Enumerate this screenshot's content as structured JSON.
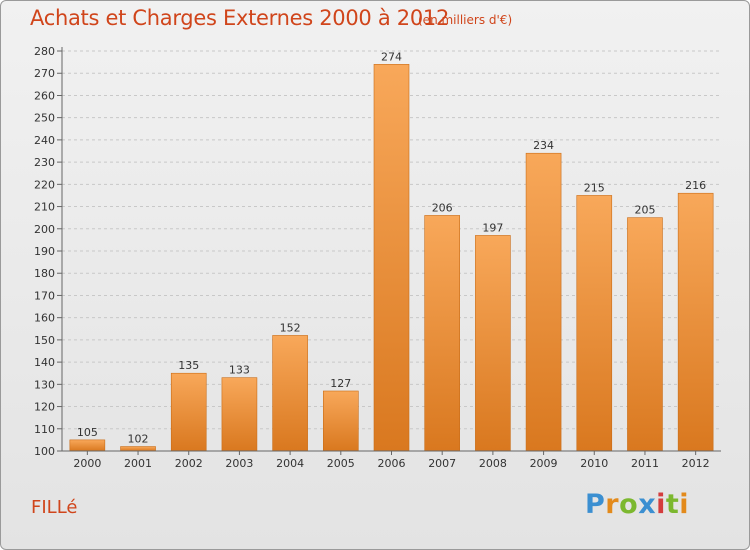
{
  "header": {
    "title": "Achats et Charges Externes 2000 à 2012",
    "subtitle": "(en milliers d'€)"
  },
  "footer": {
    "commune": "FILLé",
    "logo_text": "Proxiti",
    "logo_colors": [
      "#3b8fd1",
      "#e38a1b",
      "#7cb82f",
      "#3b8fd1",
      "#d43d3d",
      "#7cb82f",
      "#e38a1b"
    ]
  },
  "colors": {
    "bar_light": "#f8a85a",
    "bar_dark": "#d9781f",
    "text_accent": "#d0451b",
    "grid": "#c8c8c8"
  },
  "chart_data": {
    "type": "bar",
    "title": "Achats et Charges Externes 2000 à 2012",
    "categories": [
      "2000",
      "2001",
      "2002",
      "2003",
      "2004",
      "2005",
      "2006",
      "2007",
      "2008",
      "2009",
      "2010",
      "2011",
      "2012"
    ],
    "values": [
      105,
      102,
      135,
      133,
      152,
      127,
      274,
      206,
      197,
      234,
      215,
      205,
      216
    ],
    "ylim": [
      100,
      280
    ],
    "yticks": [
      100,
      110,
      120,
      130,
      140,
      150,
      160,
      170,
      180,
      190,
      200,
      210,
      220,
      230,
      240,
      250,
      260,
      270,
      280
    ],
    "grid": "horizontal-dashed",
    "data_labels": true
  }
}
